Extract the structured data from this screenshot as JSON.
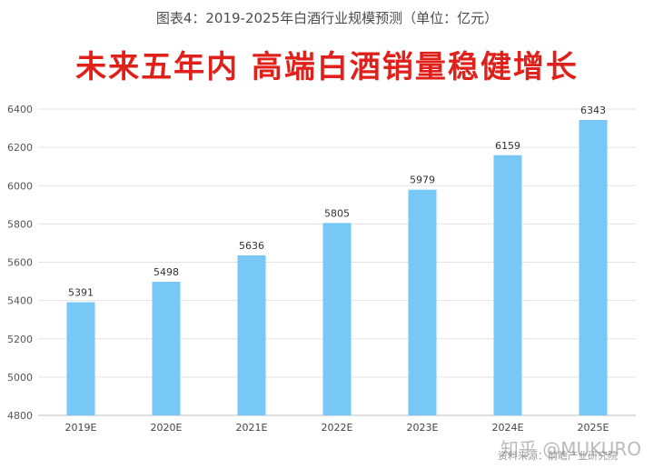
{
  "chart_title": "图表4：2019-2025年白酒行业规模预测（单位：亿元）",
  "headline": "未来五年内 高端白酒销量稳健增长",
  "watermark": "知乎 @MUKURO",
  "source": "资料来源：前瞻产业研究院",
  "chart_data": {
    "type": "bar",
    "title": "图表4：2019-2025年白酒行业规模预测（单位：亿元）",
    "categories": [
      "2019E",
      "2020E",
      "2021E",
      "2022E",
      "2023E",
      "2024E",
      "2025E"
    ],
    "values": [
      5391,
      5498,
      5636,
      5805,
      5979,
      6159,
      6343
    ],
    "ylim": [
      4800,
      6400
    ],
    "yticks": [
      4800,
      5000,
      5200,
      5400,
      5600,
      5800,
      6000,
      6200,
      6400
    ],
    "grid": true,
    "bar_color": "#77c8f6",
    "xlabel": "",
    "ylabel": ""
  }
}
